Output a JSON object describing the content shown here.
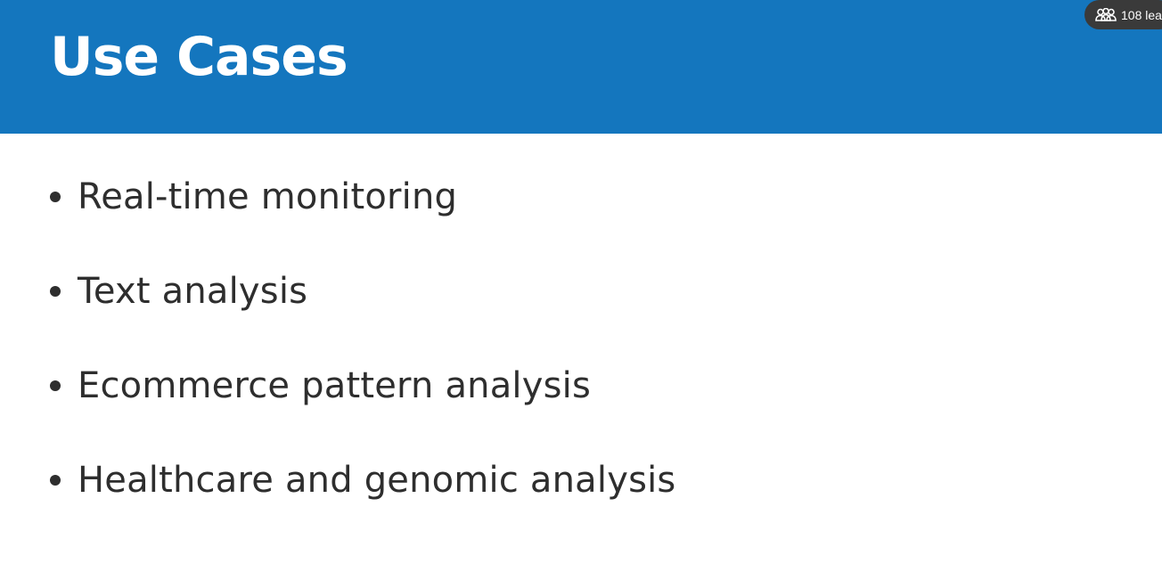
{
  "slide": {
    "title": "Use Cases",
    "bullets": [
      "Real-time monitoring",
      "Text analysis",
      "Ecommerce pattern analysis",
      "Healthcare and genomic analysis"
    ]
  },
  "viewer_indicator": {
    "icon": "people-icon",
    "text": "108 lea"
  },
  "colors": {
    "header_background": "#1476be",
    "title_text": "#ffffff",
    "bullet_text": "#2e2e2e",
    "pill_background": "#3a3a3a"
  }
}
